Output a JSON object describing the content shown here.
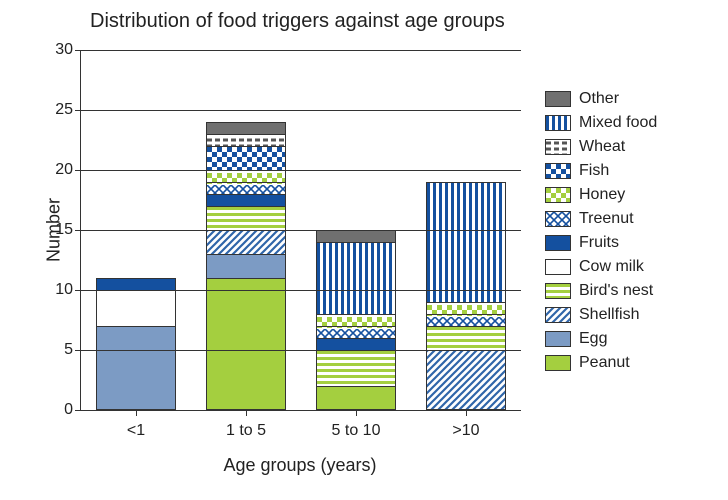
{
  "chart": {
    "type": "stacked-bar",
    "title": "Distribution of food triggers against age groups",
    "title_fontsize": 20,
    "xlabel": "Age groups (years)",
    "ylabel": "Number",
    "label_fontsize": 18,
    "tick_fontsize": 16,
    "background_color": "#ffffff",
    "grid_color": "#333333",
    "ylim": [
      0,
      30
    ],
    "yticks": [
      0,
      5,
      10,
      15,
      20,
      25,
      30
    ],
    "categories": [
      "<1",
      "1 to 5",
      "5 to 10",
      ">10"
    ],
    "bar_width_ratio": 0.55,
    "series": [
      {
        "key": "peanut",
        "label": "Peanut",
        "fill": "#a4cf3f",
        "pattern": "solid"
      },
      {
        "key": "egg",
        "label": "Egg",
        "fill": "#7c9bc4",
        "pattern": "solid"
      },
      {
        "key": "shellfish",
        "label": "Shellfish",
        "fill": "#2f65a9",
        "pattern": "diag"
      },
      {
        "key": "birdnest",
        "label": "Bird's nest",
        "fill": "#a4cf3f",
        "pattern": "hstripe"
      },
      {
        "key": "cowmilk",
        "label": "Cow milk",
        "fill": "#ffffff",
        "pattern": "solid"
      },
      {
        "key": "fruits",
        "label": "Fruits",
        "fill": "#14509f",
        "pattern": "solid"
      },
      {
        "key": "treenut",
        "label": "Treenut",
        "fill": "#14509f",
        "pattern": "cross"
      },
      {
        "key": "honey",
        "label": "Honey",
        "fill": "#a4cf3f",
        "pattern": "check"
      },
      {
        "key": "fish",
        "label": "Fish",
        "fill": "#14509f",
        "pattern": "check"
      },
      {
        "key": "wheat",
        "label": "Wheat",
        "fill": "#555555",
        "pattern": "dash"
      },
      {
        "key": "mixedfood",
        "label": "Mixed food",
        "fill": "#14509f",
        "pattern": "vstripe"
      },
      {
        "key": "other",
        "label": "Other",
        "fill": "#707070",
        "pattern": "solid"
      }
    ],
    "data": {
      "<1": {
        "peanut": 0,
        "egg": 7,
        "shellfish": 0,
        "birdnest": 0,
        "cowmilk": 3,
        "fruits": 1,
        "treenut": 0,
        "honey": 0,
        "fish": 0,
        "wheat": 0,
        "mixedfood": 0,
        "other": 0
      },
      "1 to 5": {
        "peanut": 11,
        "egg": 2,
        "shellfish": 2,
        "birdnest": 2,
        "cowmilk": 0,
        "fruits": 1,
        "treenut": 1,
        "honey": 1,
        "fish": 2,
        "wheat": 1,
        "mixedfood": 0,
        "other": 1
      },
      "5 to 10": {
        "peanut": 2,
        "egg": 0,
        "shellfish": 0,
        "birdnest": 3,
        "cowmilk": 0,
        "fruits": 1,
        "treenut": 1,
        "honey": 1,
        "fish": 0,
        "wheat": 0,
        "mixedfood": 6,
        "other": 1
      },
      ">10": {
        "peanut": 0,
        "egg": 0,
        "shellfish": 5,
        "birdnest": 2,
        "cowmilk": 0,
        "fruits": 0,
        "treenut": 1,
        "honey": 1,
        "fish": 0,
        "wheat": 0,
        "mixedfood": 10,
        "other": 0
      }
    },
    "legend_order": [
      "other",
      "mixedfood",
      "wheat",
      "fish",
      "honey",
      "treenut",
      "fruits",
      "cowmilk",
      "birdnest",
      "shellfish",
      "egg",
      "peanut"
    ]
  }
}
